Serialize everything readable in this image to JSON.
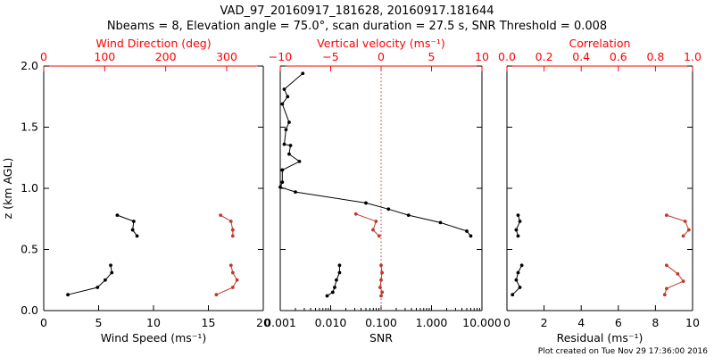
{
  "figure": {
    "title_line1": "VAD_97_20160917_181628, 20160917.181644",
    "title_line2": "Nbeams = 8, Elevation angle = 75.0°, scan duration = 27.5 s, SNR Threshold = 0.008",
    "footer": "Plot created on Tue Nov 29 17:36:00 2016",
    "colors": {
      "primary": "#000000",
      "secondary": "#c0392b",
      "axis_top": "#ff0000"
    }
  },
  "chart_data": [
    {
      "type": "line",
      "panel": "wind",
      "ylabel": "z (km AGL)",
      "ylim": [
        0,
        2.0
      ],
      "yticks": [
        "0.0",
        "0.5",
        "1.0",
        "1.5",
        "2.0"
      ],
      "xlabel_bottom": "Wind Speed (ms⁻¹)",
      "xlim_bottom": [
        0,
        20
      ],
      "xticks_bottom": [
        "0",
        "5",
        "10",
        "15",
        "20"
      ],
      "xlabel_top": "Wind Direction (deg)",
      "xlim_top": [
        0,
        360
      ],
      "xticks_top": [
        "0",
        "100",
        "200",
        "300"
      ],
      "series": [
        {
          "axis": "bottom",
          "color": "#000000",
          "segments": [
            [
              [
                2.2,
                0.13
              ],
              [
                4.9,
                0.19
              ],
              [
                5.6,
                0.25
              ],
              [
                6.2,
                0.31
              ],
              [
                6.1,
                0.37
              ]
            ],
            [
              [
                6.7,
                0.78
              ],
              [
                8.2,
                0.73
              ],
              [
                8.1,
                0.66
              ],
              [
                8.5,
                0.61
              ]
            ]
          ]
        },
        {
          "axis": "top",
          "color": "#c0392b",
          "segments": [
            [
              [
                283,
                0.13
              ],
              [
                310,
                0.19
              ],
              [
                317,
                0.25
              ],
              [
                310,
                0.31
              ],
              [
                307,
                0.37
              ]
            ],
            [
              [
                290,
                0.78
              ],
              [
                307,
                0.73
              ],
              [
                310,
                0.66
              ],
              [
                310,
                0.61
              ]
            ]
          ]
        }
      ]
    },
    {
      "type": "line",
      "panel": "snr",
      "xscale": "log",
      "xlabel_bottom": "SNR",
      "xlim_bottom": [
        0.001,
        10
      ],
      "xticks_bottom": [
        "0.001",
        "0.010",
        "0.100",
        "1.000",
        "10.000"
      ],
      "xlabel_top": "Vertical velocity (ms⁻¹)",
      "xlim_top": [
        -10,
        10
      ],
      "xticks_top": [
        "−10",
        "−5",
        "0",
        "5",
        "10"
      ],
      "series": [
        {
          "axis": "bottom",
          "color": "#000000",
          "segments": [
            [
              [
                0.0028,
                1.94
              ],
              [
                0.0012,
                1.81
              ],
              [
                0.0014,
                1.75
              ],
              [
                0.0011,
                1.69
              ],
              [
                0.0015,
                1.54
              ],
              [
                0.0013,
                1.48
              ],
              [
                0.0012,
                1.36
              ],
              [
                0.0016,
                1.35
              ],
              [
                0.0015,
                1.28
              ],
              [
                0.0024,
                1.22
              ],
              [
                0.0011,
                1.15
              ],
              [
                0.0011,
                1.05
              ],
              [
                0.001,
                1.01
              ],
              [
                0.002,
                0.97
              ],
              [
                0.05,
                0.88
              ],
              [
                0.14,
                0.83
              ],
              [
                0.35,
                0.78
              ],
              [
                1.5,
                0.72
              ],
              [
                5.0,
                0.65
              ],
              [
                6.0,
                0.61
              ]
            ],
            [
              [
                0.0085,
                0.12
              ],
              [
                0.011,
                0.15
              ],
              [
                0.012,
                0.19
              ],
              [
                0.013,
                0.25
              ],
              [
                0.015,
                0.31
              ],
              [
                0.015,
                0.37
              ]
            ]
          ]
        },
        {
          "axis": "top",
          "color": "#c0392b",
          "segments": [
            [
              [
                -2.5,
                0.79
              ],
              [
                -0.5,
                0.73
              ],
              [
                -0.8,
                0.66
              ],
              [
                -0.2,
                0.61
              ]
            ],
            [
              [
                0.0,
                0.12
              ],
              [
                0.1,
                0.15
              ],
              [
                -0.1,
                0.19
              ],
              [
                0.0,
                0.25
              ],
              [
                0.1,
                0.31
              ],
              [
                0.0,
                0.37
              ]
            ]
          ]
        }
      ],
      "reference_line": {
        "axis": "top",
        "x": 0,
        "style": "dotted",
        "color": "#c0392b"
      }
    },
    {
      "type": "line",
      "panel": "residual",
      "xlabel_bottom": "Residual (ms⁻¹)",
      "xlim_bottom": [
        0,
        10
      ],
      "xticks_bottom": [
        "0",
        "2",
        "4",
        "6",
        "8",
        "10"
      ],
      "xlabel_top": "Correlation",
      "xlim_top": [
        0,
        1.0
      ],
      "xticks_top": [
        "0.0",
        "0.2",
        "0.4",
        "0.6",
        "0.8",
        "1.0"
      ],
      "series": [
        {
          "axis": "bottom",
          "color": "#000000",
          "segments": [
            [
              [
                0.6,
                0.78
              ],
              [
                0.7,
                0.73
              ],
              [
                0.5,
                0.66
              ],
              [
                0.6,
                0.61
              ]
            ],
            [
              [
                0.3,
                0.13
              ],
              [
                0.7,
                0.19
              ],
              [
                0.5,
                0.25
              ],
              [
                0.6,
                0.31
              ],
              [
                0.8,
                0.37
              ]
            ]
          ]
        },
        {
          "axis": "top",
          "color": "#c0392b",
          "segments": [
            [
              [
                0.86,
                0.78
              ],
              [
                0.96,
                0.73
              ],
              [
                0.98,
                0.66
              ],
              [
                0.95,
                0.61
              ]
            ],
            [
              [
                0.85,
                0.13
              ],
              [
                0.86,
                0.18
              ],
              [
                0.95,
                0.24
              ],
              [
                0.92,
                0.3
              ],
              [
                0.86,
                0.37
              ]
            ]
          ]
        }
      ]
    }
  ]
}
